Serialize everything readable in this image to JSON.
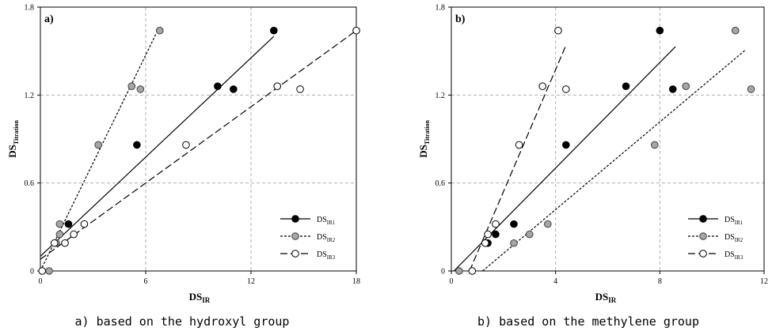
{
  "chart_data": [
    {
      "type": "scatter",
      "panel_label": "a)",
      "caption": "a) based on the hydroxyl group",
      "xlabel": {
        "base": "DS",
        "sub": "IR"
      },
      "ylabel": {
        "base": "DS",
        "sub": "Titration"
      },
      "xlim": [
        0,
        18
      ],
      "ylim": [
        0,
        1.8
      ],
      "xticks": [
        "0",
        "6",
        "12",
        "18"
      ],
      "yticks": [
        "0",
        "0.6",
        "1.2",
        "1.8"
      ],
      "grid": true,
      "legend_position": "bottom-right",
      "series": [
        {
          "name": {
            "base": "DS",
            "sub": "IR1"
          },
          "marker": "filled-black",
          "line_style": "solid",
          "points": [
            [
              1.6,
              0.32
            ],
            [
              5.5,
              0.86
            ],
            [
              10.1,
              1.26
            ],
            [
              11.0,
              1.24
            ],
            [
              13.3,
              1.64
            ]
          ],
          "fit": [
            [
              0.0,
              0.1
            ],
            [
              13.3,
              1.6
            ]
          ]
        },
        {
          "name": {
            "base": "DS",
            "sub": "IR2"
          },
          "marker": "filled-gray",
          "line_style": "short-dash",
          "points": [
            [
              0.5,
              0.0
            ],
            [
              0.9,
              0.19
            ],
            [
              1.1,
              0.25
            ],
            [
              1.1,
              0.32
            ],
            [
              3.3,
              0.86
            ],
            [
              5.2,
              1.26
            ],
            [
              5.7,
              1.24
            ],
            [
              6.8,
              1.64
            ]
          ],
          "fit": [
            [
              0.0,
              0.0
            ],
            [
              6.6,
              1.62
            ]
          ]
        },
        {
          "name": {
            "base": "DS",
            "sub": "IR3"
          },
          "marker": "open",
          "line_style": "long-dash",
          "points": [
            [
              0.1,
              0.0
            ],
            [
              0.8,
              0.19
            ],
            [
              1.4,
              0.19
            ],
            [
              1.9,
              0.25
            ],
            [
              2.5,
              0.32
            ],
            [
              8.3,
              0.86
            ],
            [
              13.5,
              1.26
            ],
            [
              14.8,
              1.24
            ],
            [
              18.0,
              1.64
            ]
          ],
          "fit": [
            [
              0.0,
              0.08
            ],
            [
              18.0,
              1.64
            ]
          ]
        }
      ]
    },
    {
      "type": "scatter",
      "panel_label": "b)",
      "caption": "b) based on the methylene group",
      "xlabel": {
        "base": "DS",
        "sub": "IR"
      },
      "ylabel": {
        "base": "DS",
        "sub": "Titration"
      },
      "xlim": [
        0,
        12
      ],
      "ylim": [
        0,
        1.8
      ],
      "xticks": [
        "0",
        "4",
        "8",
        "12"
      ],
      "yticks": [
        "0",
        "0.6",
        "1.2",
        "1.8"
      ],
      "grid": true,
      "legend_position": "bottom-right",
      "series": [
        {
          "name": {
            "base": "DS",
            "sub": "IR1"
          },
          "marker": "filled-black",
          "line_style": "solid",
          "points": [
            [
              1.4,
              0.19
            ],
            [
              1.7,
              0.25
            ],
            [
              2.4,
              0.32
            ],
            [
              4.4,
              0.86
            ],
            [
              6.7,
              1.26
            ],
            [
              8.5,
              1.24
            ],
            [
              8.0,
              1.64
            ]
          ],
          "fit": [
            [
              0.1,
              0.0
            ],
            [
              8.6,
              1.53
            ]
          ]
        },
        {
          "name": {
            "base": "DS",
            "sub": "IR2"
          },
          "marker": "filled-gray",
          "line_style": "short-dash",
          "points": [
            [
              0.3,
              0.0
            ],
            [
              1.3,
              0.19
            ],
            [
              2.4,
              0.19
            ],
            [
              3.0,
              0.25
            ],
            [
              3.7,
              0.32
            ],
            [
              7.8,
              0.86
            ],
            [
              9.0,
              1.26
            ],
            [
              11.5,
              1.24
            ],
            [
              10.9,
              1.64
            ]
          ],
          "fit": [
            [
              1.2,
              0.0
            ],
            [
              11.3,
              1.51
            ]
          ]
        },
        {
          "name": {
            "base": "DS",
            "sub": "IR3"
          },
          "marker": "open",
          "line_style": "long-dash",
          "points": [
            [
              0.8,
              0.0
            ],
            [
              1.3,
              0.19
            ],
            [
              1.4,
              0.25
            ],
            [
              1.7,
              0.32
            ],
            [
              2.6,
              0.86
            ],
            [
              3.5,
              1.26
            ],
            [
              4.4,
              1.24
            ],
            [
              4.1,
              1.64
            ]
          ],
          "fit": [
            [
              0.7,
              0.0
            ],
            [
              4.4,
              1.54
            ]
          ]
        }
      ]
    }
  ]
}
